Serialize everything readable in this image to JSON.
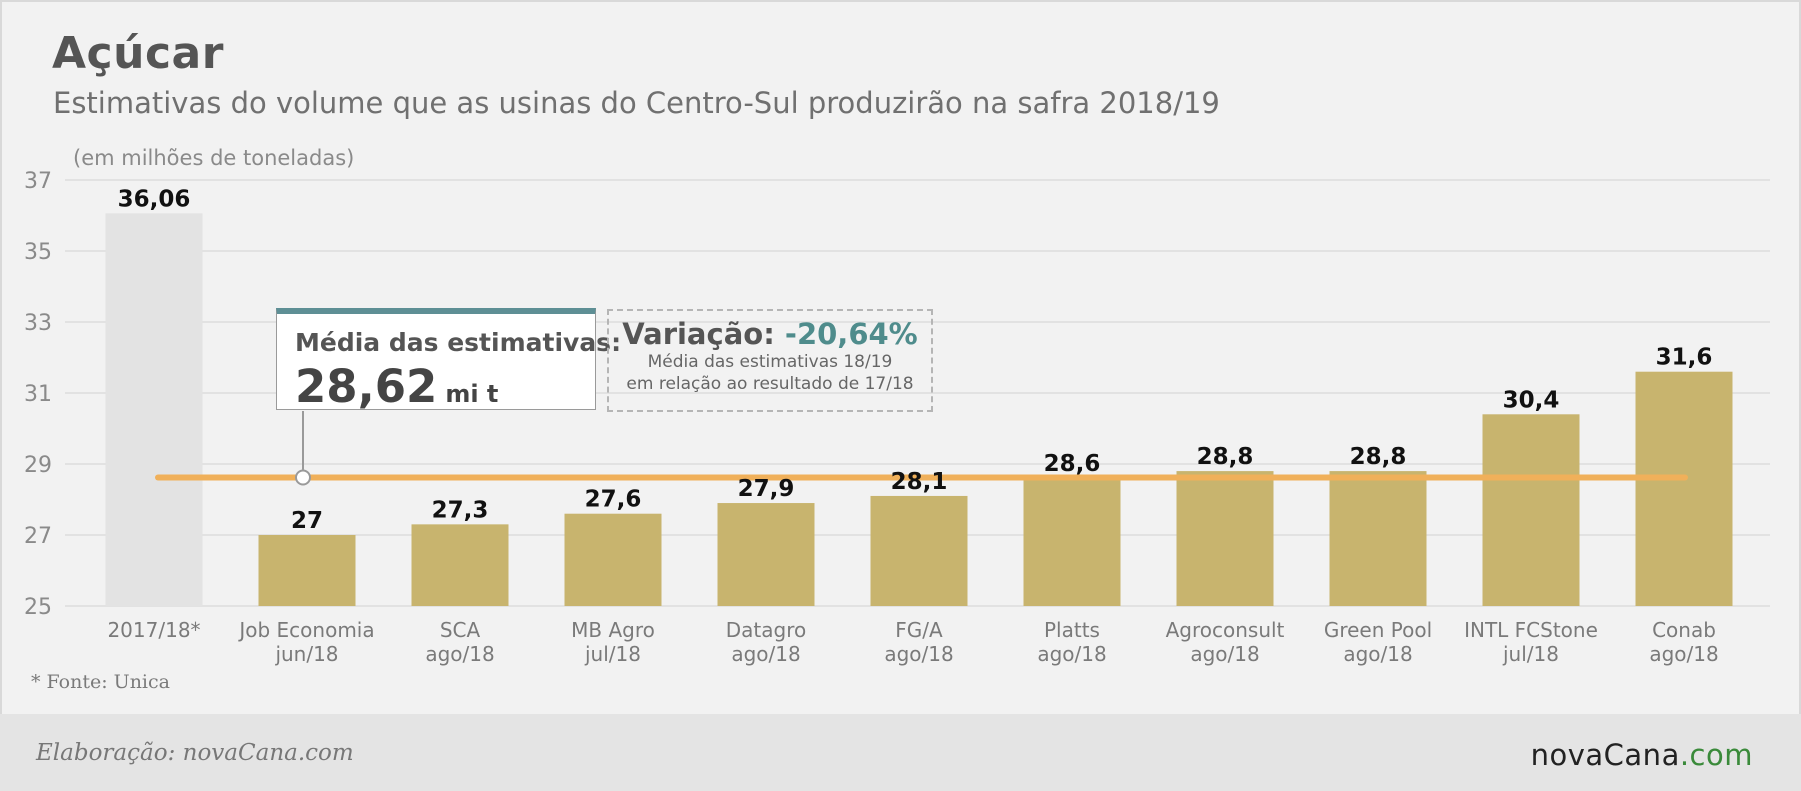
{
  "header": {
    "title": "Açúcar",
    "subtitle": "Estimativas do volume que as usinas do Centro-Sul produzirão na safra 2018/19"
  },
  "chart_data": {
    "type": "bar",
    "unit_label": "(em milhões de toneladas)",
    "ylim": [
      25,
      37
    ],
    "yticks": [
      25,
      27,
      29,
      31,
      33,
      35,
      37
    ],
    "grid": true,
    "categories": [
      [
        "2017/18*"
      ],
      [
        "Job Economia",
        "jun/18"
      ],
      [
        "SCA",
        "ago/18"
      ],
      [
        "MB Agro",
        "jul/18"
      ],
      [
        "Datagro",
        "ago/18"
      ],
      [
        "FG/A",
        "ago/18"
      ],
      [
        "Platts",
        "ago/18"
      ],
      [
        "Agroconsult",
        "ago/18"
      ],
      [
        "Green Pool",
        "ago/18"
      ],
      [
        "INTL FCStone",
        "jul/18"
      ],
      [
        "Conab",
        "ago/18"
      ]
    ],
    "values": [
      36.06,
      27,
      27.3,
      27.6,
      27.9,
      28.1,
      28.6,
      28.8,
      28.8,
      30.4,
      31.6
    ],
    "value_labels": [
      "36,06",
      "27",
      "27,3",
      "27,6",
      "27,9",
      "28,1",
      "28,6",
      "28,8",
      "28,8",
      "30,4",
      "31,6"
    ],
    "average_line": 28.62,
    "colors": {
      "reference_bar": "#e3e3e3",
      "estimate_bar": "#c8b46e",
      "average_line": "#f0b05a",
      "accent": "#5e8f95"
    }
  },
  "callouts": {
    "average": {
      "label": "Média das estimativas:",
      "value": "28,62",
      "unit": "mi t"
    },
    "variation": {
      "label": "Variação:",
      "value": "-20,64%",
      "note_line1": "Média das estimativas 18/19",
      "note_line2": "em relação ao resultado de 17/18"
    }
  },
  "footer": {
    "source": "* Fonte: Unica",
    "credit": "Elaboração: novaCana.com",
    "logo_main": "novaCana",
    "logo_suffix": ".com"
  }
}
